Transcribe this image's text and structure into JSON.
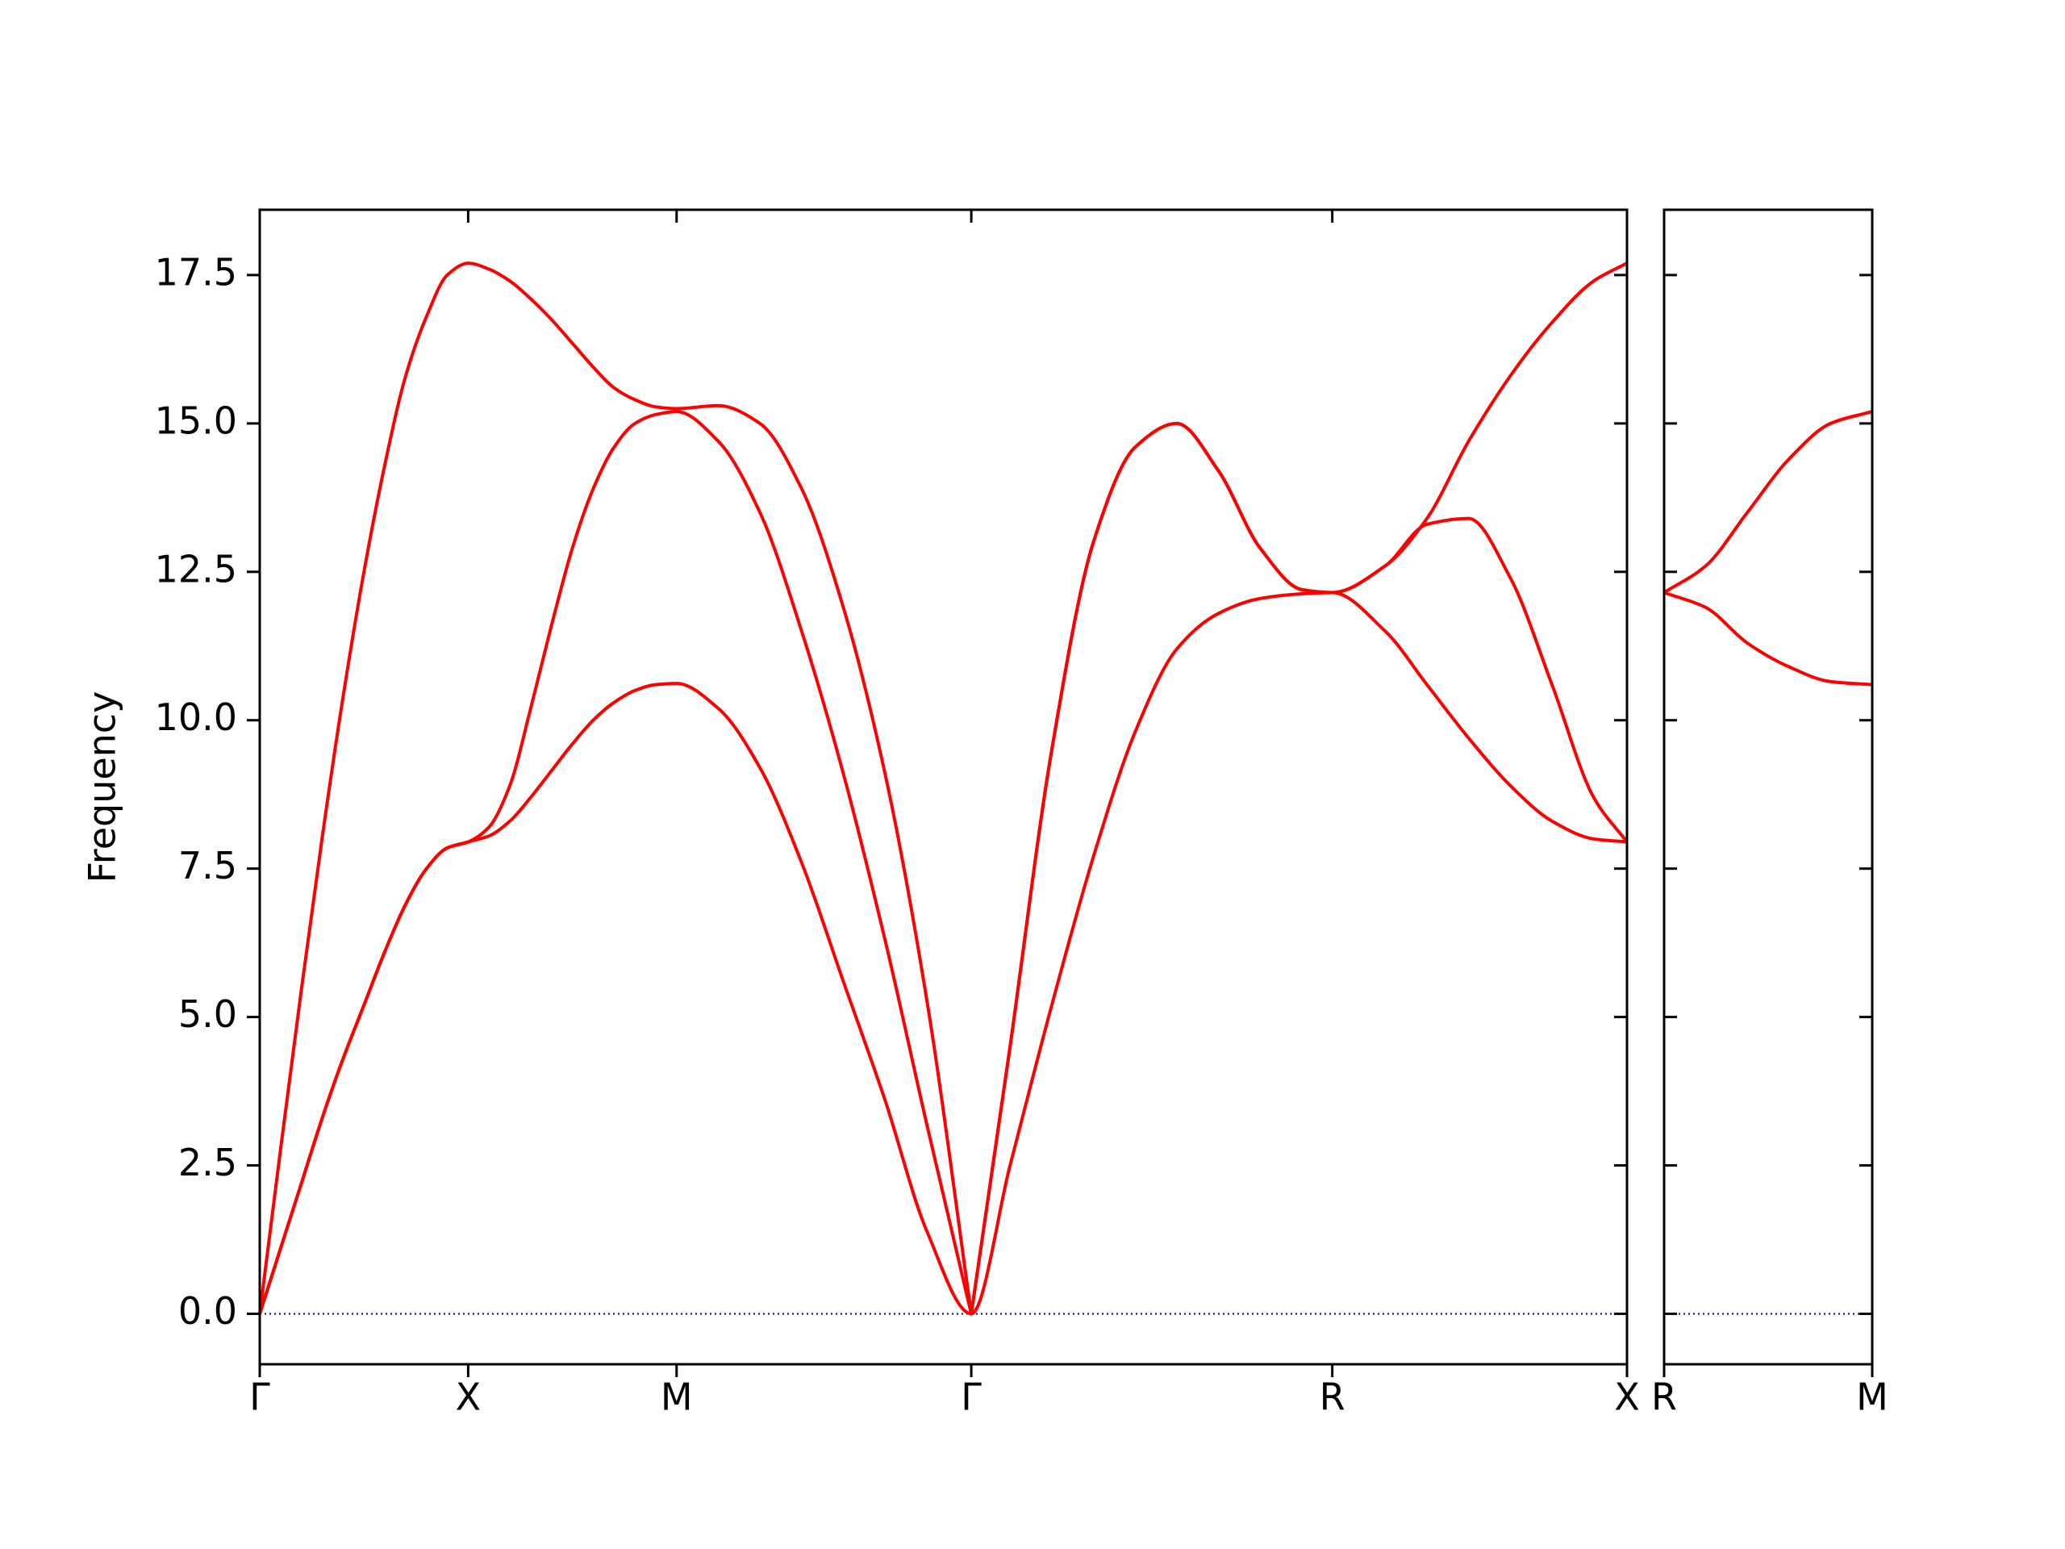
{
  "chart_data": [
    {
      "type": "line",
      "ylabel": "Frequency",
      "x": [
        0,
        0.05,
        0.1,
        0.15,
        0.2,
        0.25,
        0.3,
        0.35,
        0.4,
        0.45,
        0.5,
        0.55,
        0.6,
        0.65,
        0.7,
        0.75,
        0.8,
        0.85,
        0.9,
        0.95,
        1.0,
        1.1,
        1.2,
        1.3,
        1.4,
        1.5,
        1.6,
        1.707,
        1.8,
        1.9,
        2.0,
        2.1,
        2.2,
        2.3,
        2.4,
        2.5,
        2.573,
        2.7,
        2.8,
        2.9,
        3.0,
        3.1,
        3.2,
        3.28
      ],
      "series": [
        {
          "color": "#ff0000",
          "values": [
            0,
            2.77,
            5.47,
            8.03,
            10.4,
            12.5,
            14.3,
            15.8,
            16.8,
            17.5,
            17.7,
            17.6,
            17.4,
            17.1,
            16.75,
            16.35,
            15.95,
            15.6,
            15.4,
            15.28,
            15.25,
            15.3,
            15.0,
            13.9,
            11.9,
            9.1,
            5.3,
            0,
            4.5,
            9.5,
            13.0,
            14.6,
            15.0,
            14.2,
            12.9,
            12.2,
            12.15,
            12.6,
            13.4,
            14.7,
            15.8,
            16.7,
            17.4,
            17.7
          ]
        },
        {
          "color": "#ff0000",
          "values": [
            0,
            1.1,
            2.2,
            3.3,
            4.3,
            5.2,
            6.1,
            6.9,
            7.5,
            7.85,
            7.95,
            8.2,
            8.9,
            10.2,
            11.6,
            12.9,
            13.9,
            14.6,
            15.0,
            15.15,
            15.2,
            14.7,
            13.5,
            11.5,
            9.1,
            6.3,
            3.2,
            0,
            4.5,
            9.5,
            13.0,
            14.6,
            15.0,
            14.2,
            12.9,
            12.2,
            12.15,
            12.6,
            13.3,
            13.4,
            12.4,
            10.6,
            8.7,
            7.95
          ]
        },
        {
          "color": "#ff0000",
          "values": [
            0,
            1.1,
            2.2,
            3.3,
            4.3,
            5.2,
            6.1,
            6.9,
            7.5,
            7.85,
            7.95,
            8.05,
            8.3,
            8.7,
            9.15,
            9.6,
            10.0,
            10.3,
            10.5,
            10.6,
            10.62,
            10.2,
            9.2,
            7.6,
            5.6,
            3.6,
            1.4,
            0,
            2.5,
            5.2,
            7.7,
            9.8,
            11.2,
            11.8,
            12.05,
            12.13,
            12.15,
            11.5,
            10.6,
            9.7,
            8.9,
            8.3,
            8.0,
            7.95
          ]
        }
      ],
      "xlim": [
        0,
        3.28
      ],
      "xticks": [
        {
          "value": 0,
          "label": "Γ"
        },
        {
          "value": 0.5,
          "label": "X"
        },
        {
          "value": 1.0,
          "label": "M"
        },
        {
          "value": 1.707,
          "label": "Γ"
        },
        {
          "value": 2.573,
          "label": "R"
        },
        {
          "value": 3.28,
          "label": "X"
        }
      ],
      "ylim": [
        -0.85,
        18.6
      ],
      "yticks": [
        {
          "value": 0,
          "label": "0.0"
        },
        2.5,
        {
          "value": 5,
          "label": "5.0"
        },
        7.5,
        {
          "value": 10,
          "label": "10.0"
        },
        12.5,
        {
          "value": 15,
          "label": "15.0"
        },
        17.5
      ],
      "zero_line": 0,
      "zero_line_color": "#00008b"
    },
    {
      "type": "line",
      "x": [
        0,
        0.1,
        0.2,
        0.3,
        0.4,
        0.5
      ],
      "series": [
        {
          "color": "#ff0000",
          "values": [
            12.15,
            12.6,
            13.5,
            14.4,
            15.0,
            15.2
          ]
        },
        {
          "color": "#ff0000",
          "values": [
            12.15,
            11.9,
            11.3,
            10.9,
            10.65,
            10.6
          ]
        }
      ],
      "xlim": [
        0,
        0.5
      ],
      "xticks": [
        {
          "value": 0,
          "label": "R"
        },
        {
          "value": 0.5,
          "label": "M"
        }
      ],
      "ylim": [
        -0.85,
        18.6
      ],
      "yticks": [
        0,
        2.5,
        5,
        7.5,
        10,
        12.5,
        15,
        17.5
      ],
      "zero_line": 0,
      "zero_line_color": "#00008b"
    }
  ]
}
